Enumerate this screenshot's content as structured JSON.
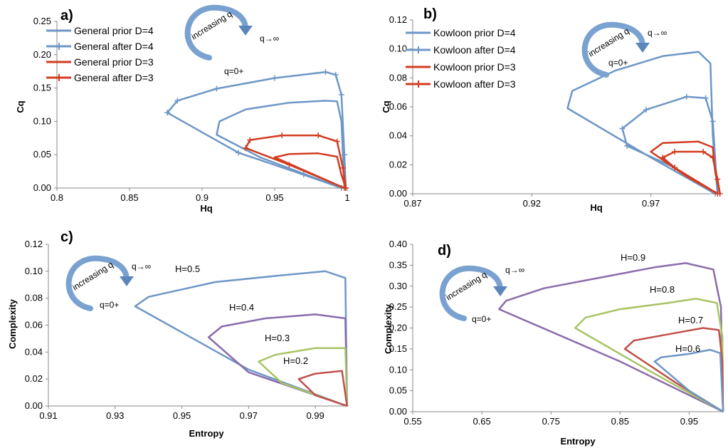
{
  "chart_data": [
    {
      "panel": "a)",
      "type": "line",
      "xlabel": "Hq",
      "ylabel": "Cq",
      "xlim": [
        0.8,
        1.0
      ],
      "ylim": [
        0,
        0.25
      ],
      "xticks": [
        "0.8",
        "0.85",
        "0.9",
        "0.95",
        "1"
      ],
      "yticks": [
        "0.00",
        "0.05",
        "0.10",
        "0.15",
        "0.20",
        "0.25"
      ],
      "legend_position": "top-left",
      "annotations": [
        "increasing q",
        "q→∞",
        "q=0+"
      ],
      "series": [
        {
          "name": "General prior D=4",
          "color": "#6d97c6",
          "marker": "none",
          "points": [
            [
              0.996,
              0.0
            ],
            [
              0.94,
              0.046
            ],
            [
              0.91,
              0.08
            ],
            [
              0.912,
              0.1
            ],
            [
              0.93,
              0.118
            ],
            [
              0.96,
              0.128
            ],
            [
              0.985,
              0.131
            ],
            [
              0.993,
              0.13
            ],
            [
              0.996,
              0.1
            ],
            [
              0.998,
              0.0
            ]
          ]
        },
        {
          "name": "General after D=4",
          "color": "#6d97c6",
          "marker": "plus",
          "points": [
            [
              0.996,
              0.0
            ],
            [
              0.97,
              0.02
            ],
            [
              0.925,
              0.053
            ],
            [
              0.876,
              0.113
            ],
            [
              0.883,
              0.131
            ],
            [
              0.91,
              0.149
            ],
            [
              0.95,
              0.165
            ],
            [
              0.985,
              0.174
            ],
            [
              0.992,
              0.17
            ],
            [
              0.996,
              0.14
            ],
            [
              0.998,
              0.05
            ],
            [
              0.999,
              0.0
            ]
          ]
        },
        {
          "name": "General prior D=3",
          "color": "#d23c21",
          "marker": "none",
          "points": [
            [
              0.998,
              0.0
            ],
            [
              0.975,
              0.022
            ],
            [
              0.95,
              0.046
            ],
            [
              0.96,
              0.051
            ],
            [
              0.98,
              0.052
            ],
            [
              0.993,
              0.047
            ],
            [
              0.996,
              0.02
            ],
            [
              0.999,
              0.0
            ]
          ]
        },
        {
          "name": "General after D=3",
          "color": "#d23c21",
          "marker": "plus",
          "points": [
            [
              0.998,
              0.0
            ],
            [
              0.96,
              0.035
            ],
            [
              0.93,
              0.06
            ],
            [
              0.933,
              0.072
            ],
            [
              0.955,
              0.079
            ],
            [
              0.98,
              0.079
            ],
            [
              0.993,
              0.07
            ],
            [
              0.997,
              0.03
            ],
            [
              0.999,
              0.0
            ]
          ]
        }
      ]
    },
    {
      "panel": "b)",
      "type": "line",
      "xlabel": "Hq",
      "ylabel": "Cq",
      "xlim": [
        0.87,
        1.0
      ],
      "ylim": [
        0,
        0.12
      ],
      "xticks": [
        "0.87",
        "0.92",
        "0.97"
      ],
      "yticks": [
        "0.00",
        "0.02",
        "0.04",
        "0.06",
        "0.08",
        "0.10",
        "0.12"
      ],
      "legend_position": "top-left",
      "annotations": [
        "increasing q",
        "q→∞",
        "q=0+"
      ],
      "series": [
        {
          "name": "Kowloon prior D=4",
          "color": "#6d97c6",
          "marker": "none",
          "points": [
            [
              0.997,
              0.0
            ],
            [
              0.97,
              0.025
            ],
            [
              0.935,
              0.059
            ],
            [
              0.937,
              0.071
            ],
            [
              0.955,
              0.085
            ],
            [
              0.975,
              0.095
            ],
            [
              0.99,
              0.098
            ],
            [
              0.995,
              0.09
            ],
            [
              0.996,
              0.04
            ],
            [
              0.998,
              0.0
            ]
          ]
        },
        {
          "name": "Kowloon after D=4",
          "color": "#6d97c6",
          "marker": "plus",
          "points": [
            [
              0.997,
              0.0
            ],
            [
              0.98,
              0.018
            ],
            [
              0.96,
              0.033
            ],
            [
              0.958,
              0.045
            ],
            [
              0.968,
              0.058
            ],
            [
              0.985,
              0.067
            ],
            [
              0.993,
              0.066
            ],
            [
              0.996,
              0.05
            ],
            [
              0.998,
              0.0
            ]
          ]
        },
        {
          "name": "Kowloon prior D=3",
          "color": "#d23c21",
          "marker": "none",
          "points": [
            [
              0.998,
              0.0
            ],
            [
              0.985,
              0.012
            ],
            [
              0.97,
              0.029
            ],
            [
              0.975,
              0.035
            ],
            [
              0.99,
              0.036
            ],
            [
              0.996,
              0.032
            ],
            [
              0.997,
              0.015
            ],
            [
              0.999,
              0.0
            ]
          ]
        },
        {
          "name": "Kowloon after D=3",
          "color": "#d23c21",
          "marker": "plus",
          "points": [
            [
              0.998,
              0.0
            ],
            [
              0.98,
              0.018
            ],
            [
              0.975,
              0.025
            ],
            [
              0.98,
              0.029
            ],
            [
              0.992,
              0.029
            ],
            [
              0.996,
              0.025
            ],
            [
              0.998,
              0.01
            ],
            [
              0.999,
              0.0
            ]
          ]
        }
      ]
    },
    {
      "panel": "c)",
      "type": "line",
      "xlabel": "Entropy",
      "ylabel": "Complexity",
      "xlim": [
        0.91,
        1.0
      ],
      "ylim": [
        0,
        0.12
      ],
      "xticks": [
        "0.91",
        "0.93",
        "0.95",
        "0.97",
        "0.99"
      ],
      "yticks": [
        "0.00",
        "0.02",
        "0.04",
        "0.06",
        "0.08",
        "0.10",
        "0.12"
      ],
      "annotations": [
        "increasing q",
        "q→∞",
        "q=0+"
      ],
      "series": [
        {
          "name": "H=0.5",
          "color": "#6d97c6",
          "points": [
            [
              0.9995,
              0.0
            ],
            [
              0.97,
              0.027
            ],
            [
              0.936,
              0.074
            ],
            [
              0.94,
              0.081
            ],
            [
              0.96,
              0.092
            ],
            [
              0.98,
              0.097
            ],
            [
              0.993,
              0.1
            ],
            [
              0.999,
              0.095
            ],
            [
              0.9995,
              0.0
            ]
          ]
        },
        {
          "name": "H=0.4",
          "color": "#8a6cab",
          "points": [
            [
              0.9995,
              0.0
            ],
            [
              0.97,
              0.025
            ],
            [
              0.958,
              0.051
            ],
            [
              0.962,
              0.059
            ],
            [
              0.975,
              0.065
            ],
            [
              0.99,
              0.068
            ],
            [
              0.999,
              0.065
            ],
            [
              0.9995,
              0.0
            ]
          ]
        },
        {
          "name": "H=0.3",
          "color": "#a8c464",
          "points": [
            [
              0.9995,
              0.0
            ],
            [
              0.98,
              0.017
            ],
            [
              0.973,
              0.033
            ],
            [
              0.978,
              0.038
            ],
            [
              0.99,
              0.043
            ],
            [
              0.999,
              0.043
            ],
            [
              0.9995,
              0.0
            ]
          ]
        },
        {
          "name": "H=0.2",
          "color": "#c0504d",
          "points": [
            [
              0.9995,
              0.0
            ],
            [
              0.99,
              0.008
            ],
            [
              0.985,
              0.02
            ],
            [
              0.99,
              0.024
            ],
            [
              0.998,
              0.026
            ],
            [
              0.9995,
              0.0
            ]
          ]
        }
      ]
    },
    {
      "panel": "d)",
      "type": "line",
      "xlabel": "Entropy",
      "ylabel": "Complexity",
      "xlim": [
        0.55,
        1.0
      ],
      "ylim": [
        0,
        0.4
      ],
      "xticks": [
        "0.55",
        "0.65",
        "0.75",
        "0.85",
        "0.95"
      ],
      "yticks": [
        "0.00",
        "0.05",
        "0.10",
        "0.15",
        "0.20",
        "0.25",
        "0.30",
        "0.35",
        "0.40"
      ],
      "annotations": [
        "increasing q",
        "q→∞",
        "q=0+"
      ],
      "series": [
        {
          "name": "H=0.9",
          "color": "#8a6cab",
          "points": [
            [
              0.999,
              0.0
            ],
            [
              0.85,
              0.12
            ],
            [
              0.675,
              0.245
            ],
            [
              0.685,
              0.265
            ],
            [
              0.74,
              0.295
            ],
            [
              0.82,
              0.32
            ],
            [
              0.9,
              0.345
            ],
            [
              0.945,
              0.355
            ],
            [
              0.985,
              0.34
            ],
            [
              0.996,
              0.25
            ],
            [
              0.999,
              0.0
            ]
          ]
        },
        {
          "name": "H=0.8",
          "color": "#a8c464",
          "points": [
            [
              0.999,
              0.0
            ],
            [
              0.89,
              0.1
            ],
            [
              0.785,
              0.2
            ],
            [
              0.8,
              0.225
            ],
            [
              0.85,
              0.245
            ],
            [
              0.92,
              0.26
            ],
            [
              0.96,
              0.27
            ],
            [
              0.99,
              0.26
            ],
            [
              0.998,
              0.18
            ],
            [
              0.999,
              0.0
            ]
          ]
        },
        {
          "name": "H=0.7",
          "color": "#c0504d",
          "points": [
            [
              0.999,
              0.0
            ],
            [
              0.93,
              0.07
            ],
            [
              0.857,
              0.15
            ],
            [
              0.87,
              0.17
            ],
            [
              0.92,
              0.185
            ],
            [
              0.97,
              0.2
            ],
            [
              0.993,
              0.195
            ],
            [
              0.998,
              0.12
            ],
            [
              0.999,
              0.0
            ]
          ]
        },
        {
          "name": "H=0.6",
          "color": "#6d97c6",
          "points": [
            [
              0.999,
              0.0
            ],
            [
              0.95,
              0.05
            ],
            [
              0.9,
              0.12
            ],
            [
              0.91,
              0.13
            ],
            [
              0.95,
              0.138
            ],
            [
              0.98,
              0.148
            ],
            [
              0.995,
              0.14
            ],
            [
              0.999,
              0.0
            ]
          ]
        }
      ]
    }
  ]
}
